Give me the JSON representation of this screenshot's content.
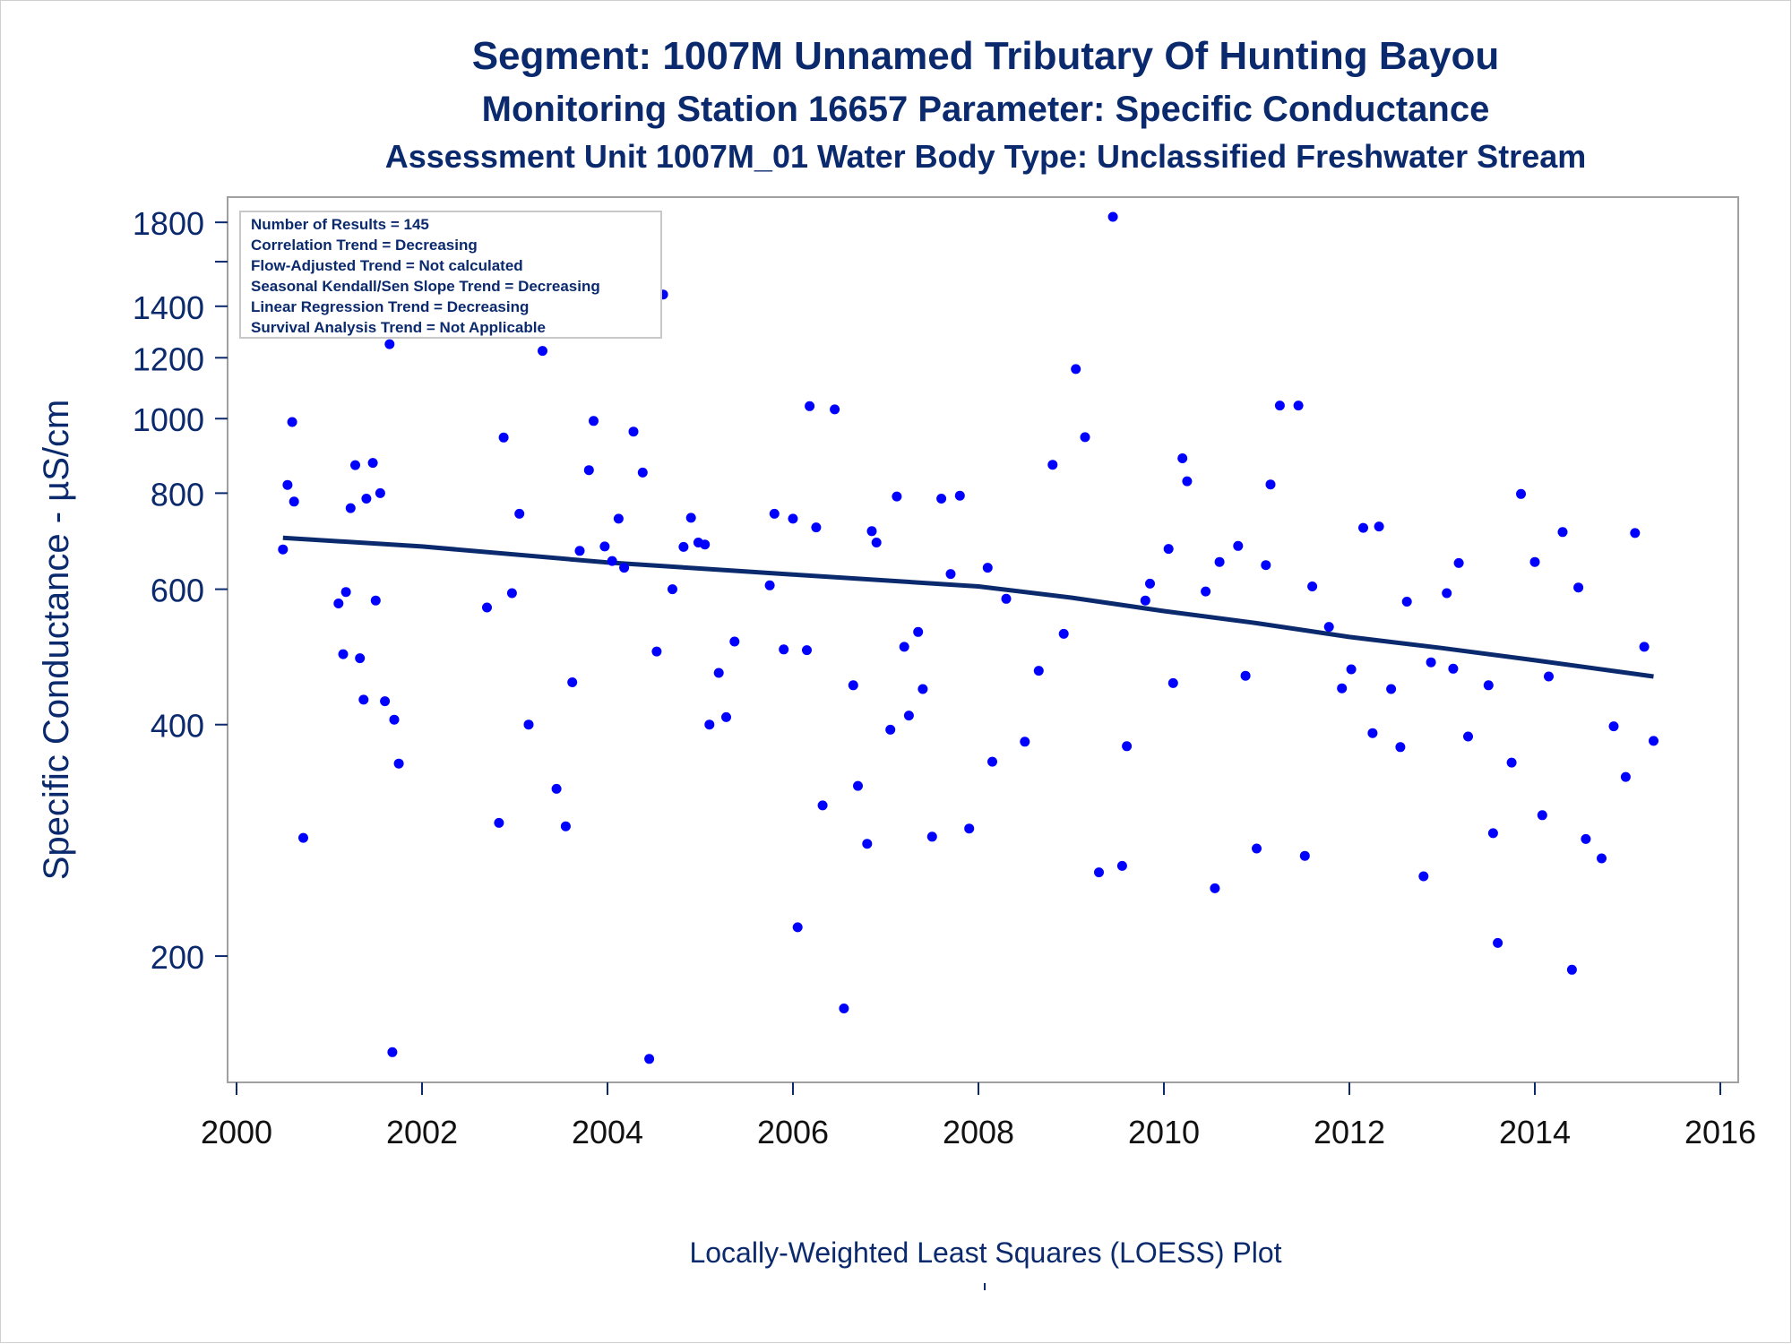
{
  "title": {
    "line1": "Segment: 1007M  Unnamed Tributary Of Hunting Bayou",
    "line2": "Monitoring Station 16657 Parameter: Specific Conductance",
    "line3": "Assessment Unit 1007M_01   Water Body Type: Unclassified Freshwater Stream"
  },
  "footnote": "Locally-Weighted Least Squares (LOESS) Plot",
  "colors": {
    "text": "#0b2a6e",
    "points": "#0000ff",
    "trend": "#0b2a6e",
    "frame": "#a0a0a0"
  },
  "chart_data": {
    "type": "scatter",
    "ylabel": "Specific Conductance -  µS/cm",
    "xlabel": "",
    "y_scale": "log",
    "xlim": [
      2000,
      2016
    ],
    "ylim": [
      140,
      1900
    ],
    "x_ticks": [
      "2000",
      "2002",
      "2004",
      "2006",
      "2008",
      "2010",
      "2012",
      "2014",
      "2016"
    ],
    "y_ticks": [
      "200",
      "400",
      "600",
      "800",
      "1000",
      "1200",
      "1400",
      "1800"
    ],
    "y_tick_values": [
      200,
      400,
      600,
      800,
      1000,
      1200,
      1400,
      1800
    ],
    "y_minor_ticks": [
      1600
    ],
    "legend_box": [
      "Number of Results = 145",
      "Correlation Trend = Decreasing",
      "Flow-Adjusted Trend = Not calculated",
      "Seasonal Kendall/Sen Slope Trend = Decreasing",
      "Linear Regression Trend = Decreasing",
      "Survival Analysis Trend = Not Applicable"
    ],
    "series": [
      {
        "type": "scatter",
        "points": [
          [
            2000.5,
            676
          ],
          [
            2000.55,
            820
          ],
          [
            2000.6,
            990
          ],
          [
            2000.62,
            780
          ],
          [
            2000.67,
            1330
          ],
          [
            2000.72,
            285
          ],
          [
            2001.1,
            575
          ],
          [
            2001.15,
            494
          ],
          [
            2001.18,
            595
          ],
          [
            2001.23,
            765
          ],
          [
            2001.28,
            870
          ],
          [
            2001.33,
            488
          ],
          [
            2001.37,
            431
          ],
          [
            2001.4,
            787
          ],
          [
            2001.47,
            876
          ],
          [
            2001.5,
            580
          ],
          [
            2001.55,
            800
          ],
          [
            2001.6,
            429
          ],
          [
            2001.65,
            1250
          ],
          [
            2001.68,
            150
          ],
          [
            2001.7,
            406
          ],
          [
            2001.75,
            356
          ],
          [
            2002.7,
            568
          ],
          [
            2002.83,
            298
          ],
          [
            2002.88,
            945
          ],
          [
            2002.97,
            593
          ],
          [
            2003.05,
            752
          ],
          [
            2003.15,
            400
          ],
          [
            2003.3,
            1225
          ],
          [
            2003.35,
            1560
          ],
          [
            2003.45,
            330
          ],
          [
            2003.55,
            295
          ],
          [
            2003.62,
            454
          ],
          [
            2003.7,
            673
          ],
          [
            2003.8,
            857
          ],
          [
            2003.85,
            993
          ],
          [
            2003.97,
            682
          ],
          [
            2004.05,
            653
          ],
          [
            2004.12,
            741
          ],
          [
            2004.18,
            640
          ],
          [
            2004.28,
            962
          ],
          [
            2004.38,
            851
          ],
          [
            2004.45,
            147
          ],
          [
            2004.53,
            498
          ],
          [
            2004.6,
            1450
          ],
          [
            2004.7,
            600
          ],
          [
            2004.82,
            681
          ],
          [
            2004.9,
            743
          ],
          [
            2004.98,
            690
          ],
          [
            2005.05,
            686
          ],
          [
            2005.1,
            400
          ],
          [
            2005.2,
            467
          ],
          [
            2005.28,
            409
          ],
          [
            2005.37,
            513
          ],
          [
            2005.75,
            607
          ],
          [
            2005.8,
            752
          ],
          [
            2005.9,
            501
          ],
          [
            2006.0,
            741
          ],
          [
            2006.05,
            218
          ],
          [
            2006.15,
            500
          ],
          [
            2006.18,
            1038
          ],
          [
            2006.25,
            722
          ],
          [
            2006.32,
            314
          ],
          [
            2006.45,
            1028
          ],
          [
            2006.55,
            171
          ],
          [
            2006.65,
            450
          ],
          [
            2006.7,
            333
          ],
          [
            2006.8,
            280
          ],
          [
            2006.85,
            714
          ],
          [
            2006.9,
            690
          ],
          [
            2007.05,
            394
          ],
          [
            2007.12,
            792
          ],
          [
            2007.2,
            505
          ],
          [
            2007.25,
            411
          ],
          [
            2007.35,
            528
          ],
          [
            2007.4,
            445
          ],
          [
            2007.5,
            286
          ],
          [
            2007.6,
            787
          ],
          [
            2007.7,
            628
          ],
          [
            2007.8,
            794
          ],
          [
            2007.9,
            293
          ],
          [
            2008.1,
            640
          ],
          [
            2008.15,
            358
          ],
          [
            2008.3,
            583
          ],
          [
            2008.5,
            380
          ],
          [
            2008.65,
            470
          ],
          [
            2008.8,
            871
          ],
          [
            2008.92,
            525
          ],
          [
            2009.05,
            1160
          ],
          [
            2009.15,
            946
          ],
          [
            2009.3,
            257
          ],
          [
            2009.45,
            1830
          ],
          [
            2009.55,
            262
          ],
          [
            2009.6,
            375
          ],
          [
            2009.8,
            580
          ],
          [
            2009.85,
            610
          ],
          [
            2010.05,
            677
          ],
          [
            2010.1,
            453
          ],
          [
            2010.2,
            888
          ],
          [
            2010.25,
            829
          ],
          [
            2010.45,
            596
          ],
          [
            2010.55,
            245
          ],
          [
            2010.6,
            651
          ],
          [
            2010.8,
            683
          ],
          [
            2010.88,
            463
          ],
          [
            2011.0,
            276
          ],
          [
            2011.1,
            645
          ],
          [
            2011.15,
            821
          ],
          [
            2011.25,
            1040
          ],
          [
            2011.45,
            1040
          ],
          [
            2011.52,
            270
          ],
          [
            2011.6,
            605
          ],
          [
            2011.78,
            536
          ],
          [
            2011.92,
            446
          ],
          [
            2012.02,
            472
          ],
          [
            2012.15,
            721
          ],
          [
            2012.25,
            390
          ],
          [
            2012.32,
            724
          ],
          [
            2012.45,
            445
          ],
          [
            2012.55,
            374
          ],
          [
            2012.62,
            578
          ],
          [
            2012.8,
            254
          ],
          [
            2012.88,
            482
          ],
          [
            2013.05,
            593
          ],
          [
            2013.12,
            473
          ],
          [
            2013.18,
            649
          ],
          [
            2013.28,
            386
          ],
          [
            2013.5,
            450
          ],
          [
            2013.55,
            289
          ],
          [
            2013.6,
            208
          ],
          [
            2013.75,
            357
          ],
          [
            2013.85,
            798
          ],
          [
            2014.0,
            651
          ],
          [
            2014.08,
            305
          ],
          [
            2014.15,
            462
          ],
          [
            2014.3,
            712
          ],
          [
            2014.4,
            192
          ],
          [
            2014.47,
            603
          ],
          [
            2014.55,
            284
          ],
          [
            2014.72,
            268
          ],
          [
            2014.85,
            398
          ],
          [
            2014.98,
            342
          ],
          [
            2015.08,
            710
          ],
          [
            2015.18,
            505
          ],
          [
            2015.28,
            381
          ]
        ]
      },
      {
        "type": "line",
        "points": [
          [
            2000.5,
            700
          ],
          [
            2002,
            682
          ],
          [
            2004,
            650
          ],
          [
            2006,
            627
          ],
          [
            2008,
            605
          ],
          [
            2009,
            585
          ],
          [
            2010,
            562
          ],
          [
            2011,
            542
          ],
          [
            2012,
            520
          ],
          [
            2013,
            503
          ],
          [
            2014,
            485
          ],
          [
            2015,
            467
          ],
          [
            2015.28,
            462
          ]
        ]
      }
    ]
  }
}
